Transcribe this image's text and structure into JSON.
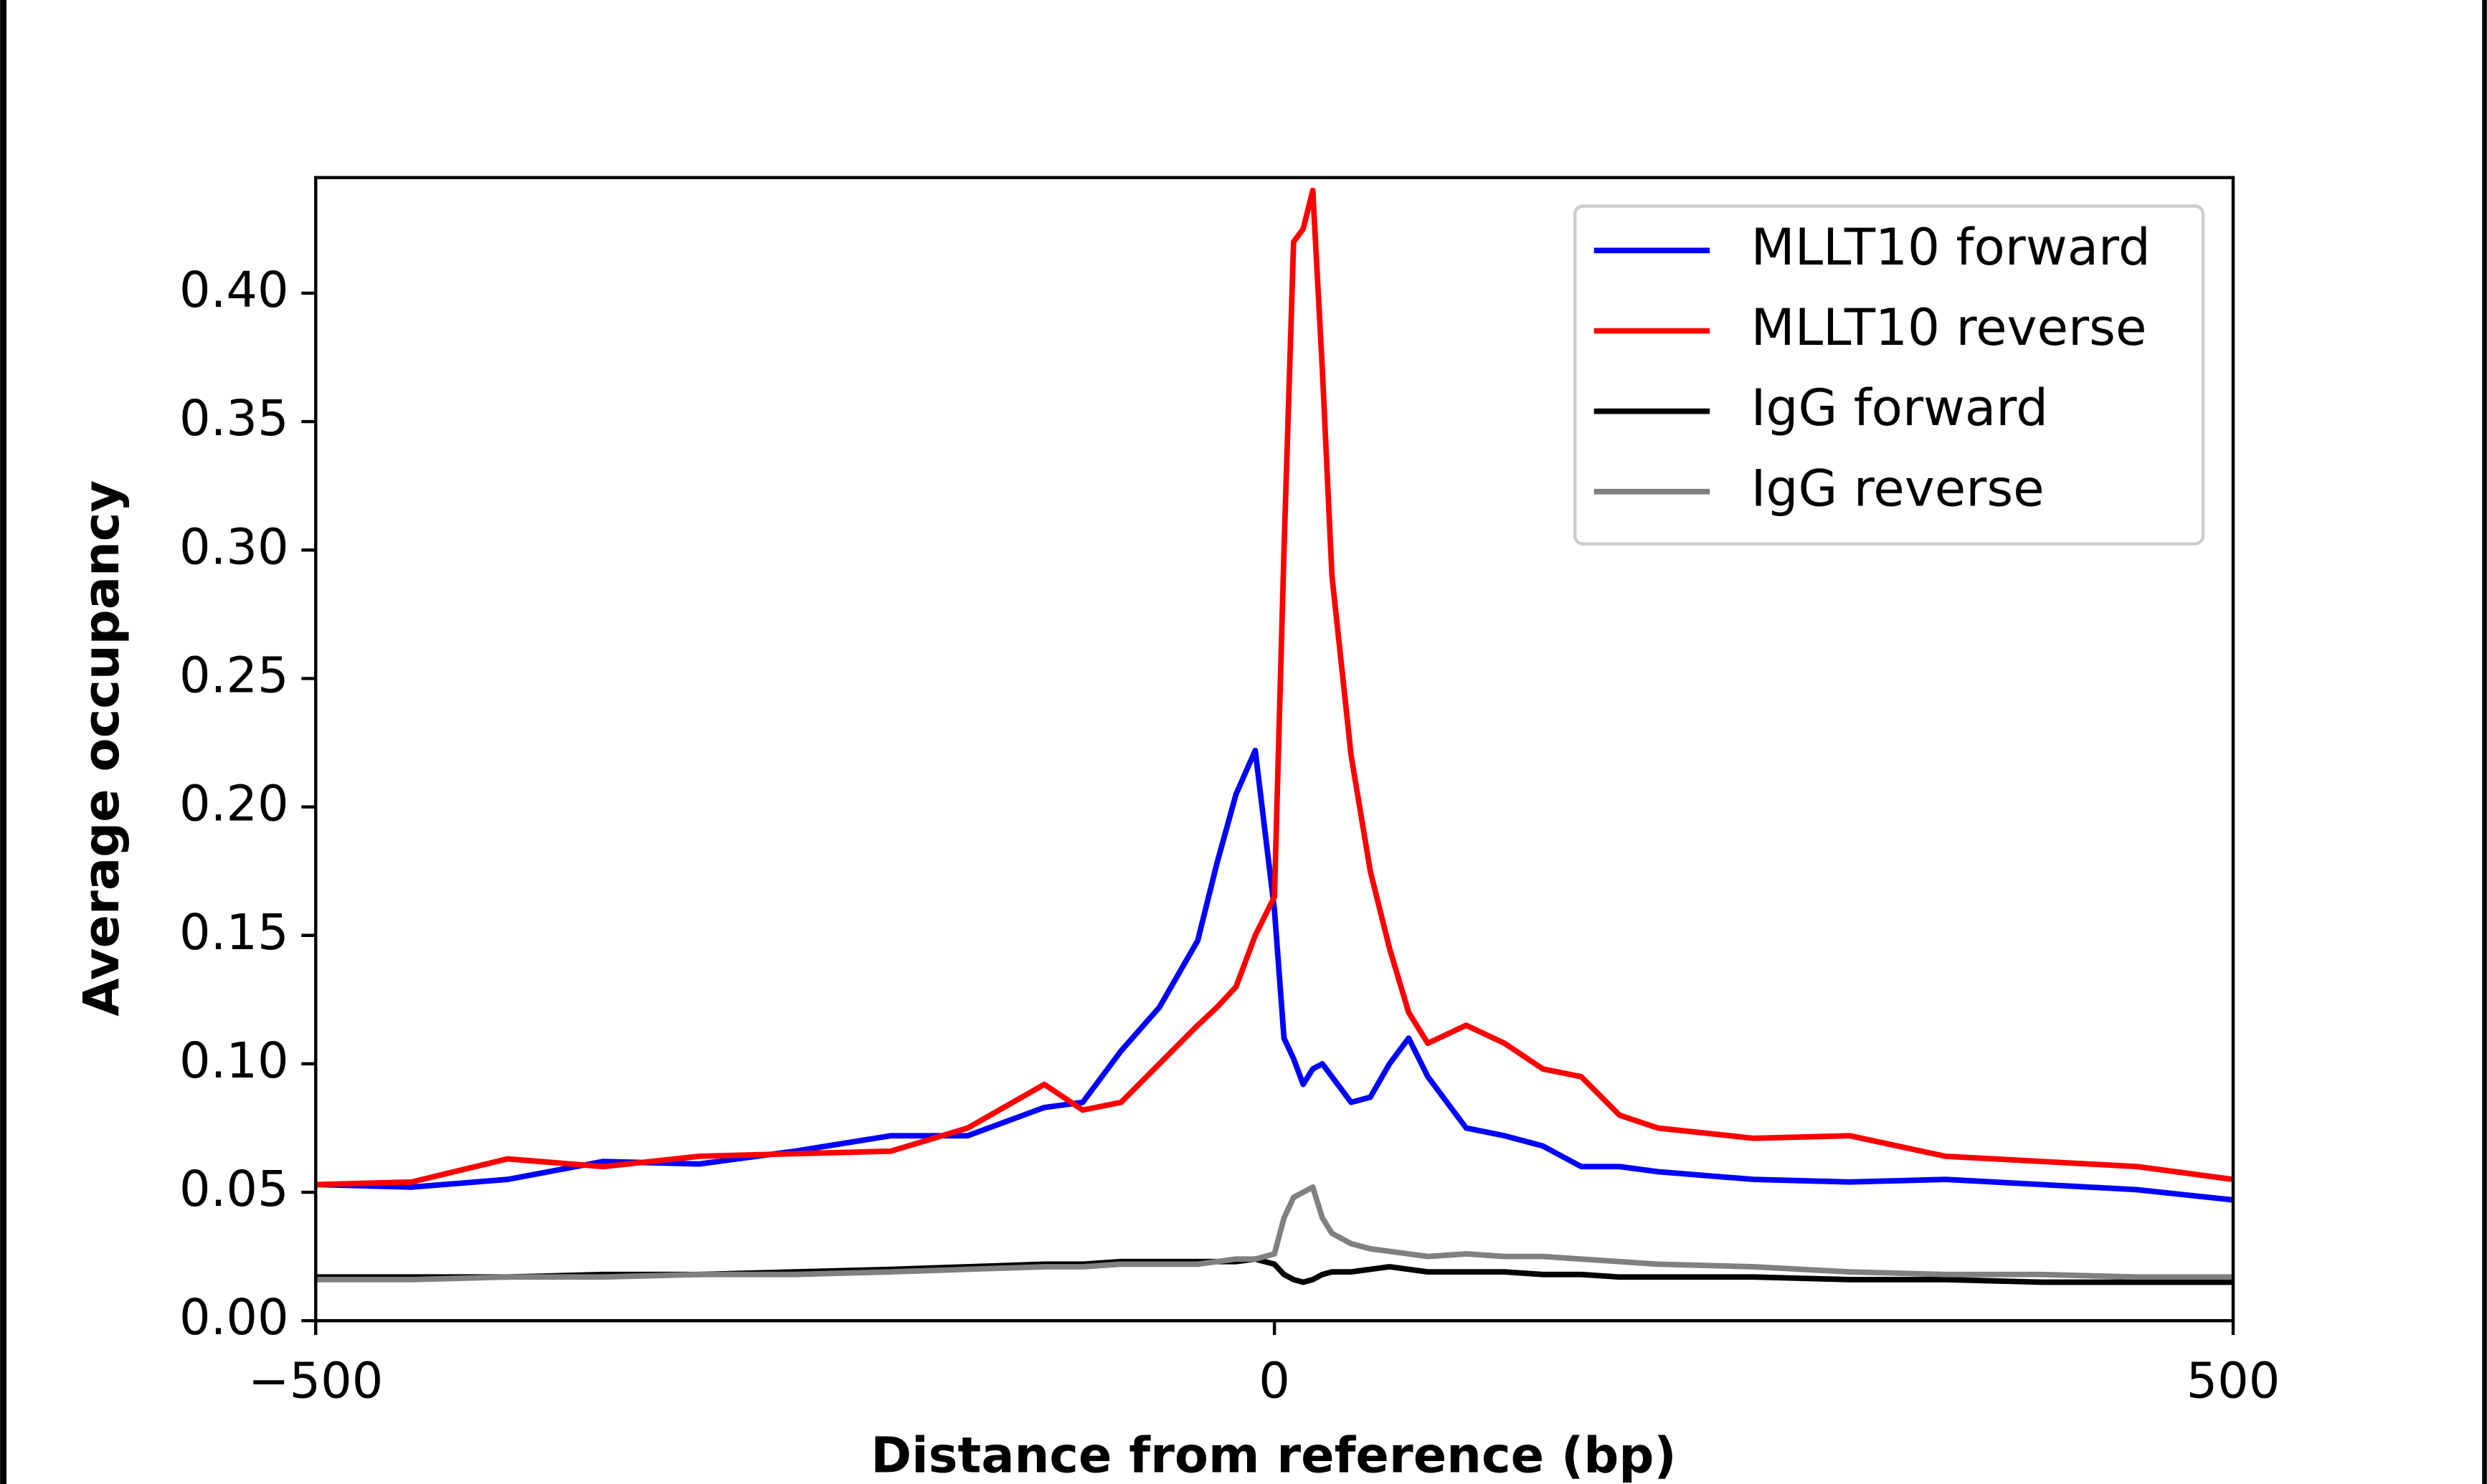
{
  "chart_data": {
    "type": "line",
    "xlabel": "Distance from reference (bp)",
    "ylabel": "Average occupancy",
    "x": [
      -500,
      -450,
      -400,
      -350,
      -300,
      -250,
      -200,
      -160,
      -120,
      -100,
      -80,
      -60,
      -40,
      -30,
      -20,
      -10,
      0,
      5,
      10,
      15,
      20,
      25,
      30,
      40,
      50,
      60,
      70,
      80,
      100,
      120,
      140,
      160,
      180,
      200,
      250,
      300,
      350,
      400,
      450,
      500
    ],
    "series": [
      {
        "name": "MLLT10 forward",
        "color": "#0000ff",
        "values": [
          0.053,
          0.052,
          0.055,
          0.062,
          0.061,
          0.066,
          0.072,
          0.072,
          0.083,
          0.085,
          0.105,
          0.122,
          0.148,
          0.178,
          0.205,
          0.222,
          0.16,
          0.11,
          0.102,
          0.092,
          0.098,
          0.1,
          0.095,
          0.085,
          0.087,
          0.1,
          0.11,
          0.095,
          0.075,
          0.072,
          0.068,
          0.06,
          0.06,
          0.058,
          0.055,
          0.054,
          0.055,
          0.053,
          0.051,
          0.047
        ]
      },
      {
        "name": "MLLT10 reverse",
        "color": "#ff0000",
        "values": [
          0.053,
          0.054,
          0.063,
          0.06,
          0.064,
          0.065,
          0.066,
          0.075,
          0.092,
          0.082,
          0.085,
          0.1,
          0.115,
          0.122,
          0.13,
          0.15,
          0.165,
          0.3,
          0.42,
          0.425,
          0.44,
          0.37,
          0.29,
          0.22,
          0.175,
          0.145,
          0.12,
          0.108,
          0.115,
          0.108,
          0.098,
          0.095,
          0.08,
          0.075,
          0.071,
          0.072,
          0.064,
          0.062,
          0.06,
          0.055
        ]
      },
      {
        "name": "IgG forward",
        "color": "#000000",
        "values": [
          0.017,
          0.017,
          0.017,
          0.018,
          0.018,
          0.019,
          0.02,
          0.021,
          0.022,
          0.022,
          0.023,
          0.023,
          0.023,
          0.023,
          0.023,
          0.024,
          0.022,
          0.018,
          0.016,
          0.015,
          0.016,
          0.018,
          0.019,
          0.019,
          0.02,
          0.021,
          0.02,
          0.019,
          0.019,
          0.019,
          0.018,
          0.018,
          0.017,
          0.017,
          0.017,
          0.016,
          0.016,
          0.015,
          0.015,
          0.015
        ]
      },
      {
        "name": "IgG reverse",
        "color": "#808080",
        "values": [
          0.016,
          0.016,
          0.017,
          0.017,
          0.018,
          0.018,
          0.019,
          0.02,
          0.021,
          0.021,
          0.022,
          0.022,
          0.022,
          0.023,
          0.024,
          0.024,
          0.026,
          0.04,
          0.048,
          0.05,
          0.052,
          0.04,
          0.034,
          0.03,
          0.028,
          0.027,
          0.026,
          0.025,
          0.026,
          0.025,
          0.025,
          0.024,
          0.023,
          0.022,
          0.021,
          0.019,
          0.018,
          0.018,
          0.017,
          0.017
        ]
      }
    ],
    "xlim": [
      -500,
      500
    ],
    "xticks": [
      {
        "value": -500,
        "label": "−500"
      },
      0,
      500
    ],
    "ylim": [
      0,
      0.445
    ],
    "yticks": [
      {
        "value": 0,
        "label": "0.00"
      },
      0.05,
      {
        "value": 0.1,
        "label": "0.10"
      },
      0.15,
      {
        "value": 0.2,
        "label": "0.20"
      },
      0.25,
      {
        "value": 0.3,
        "label": "0.30"
      },
      0.35,
      {
        "value": 0.4,
        "label": "0.40"
      }
    ],
    "legend": "upper right",
    "grid": false
  }
}
